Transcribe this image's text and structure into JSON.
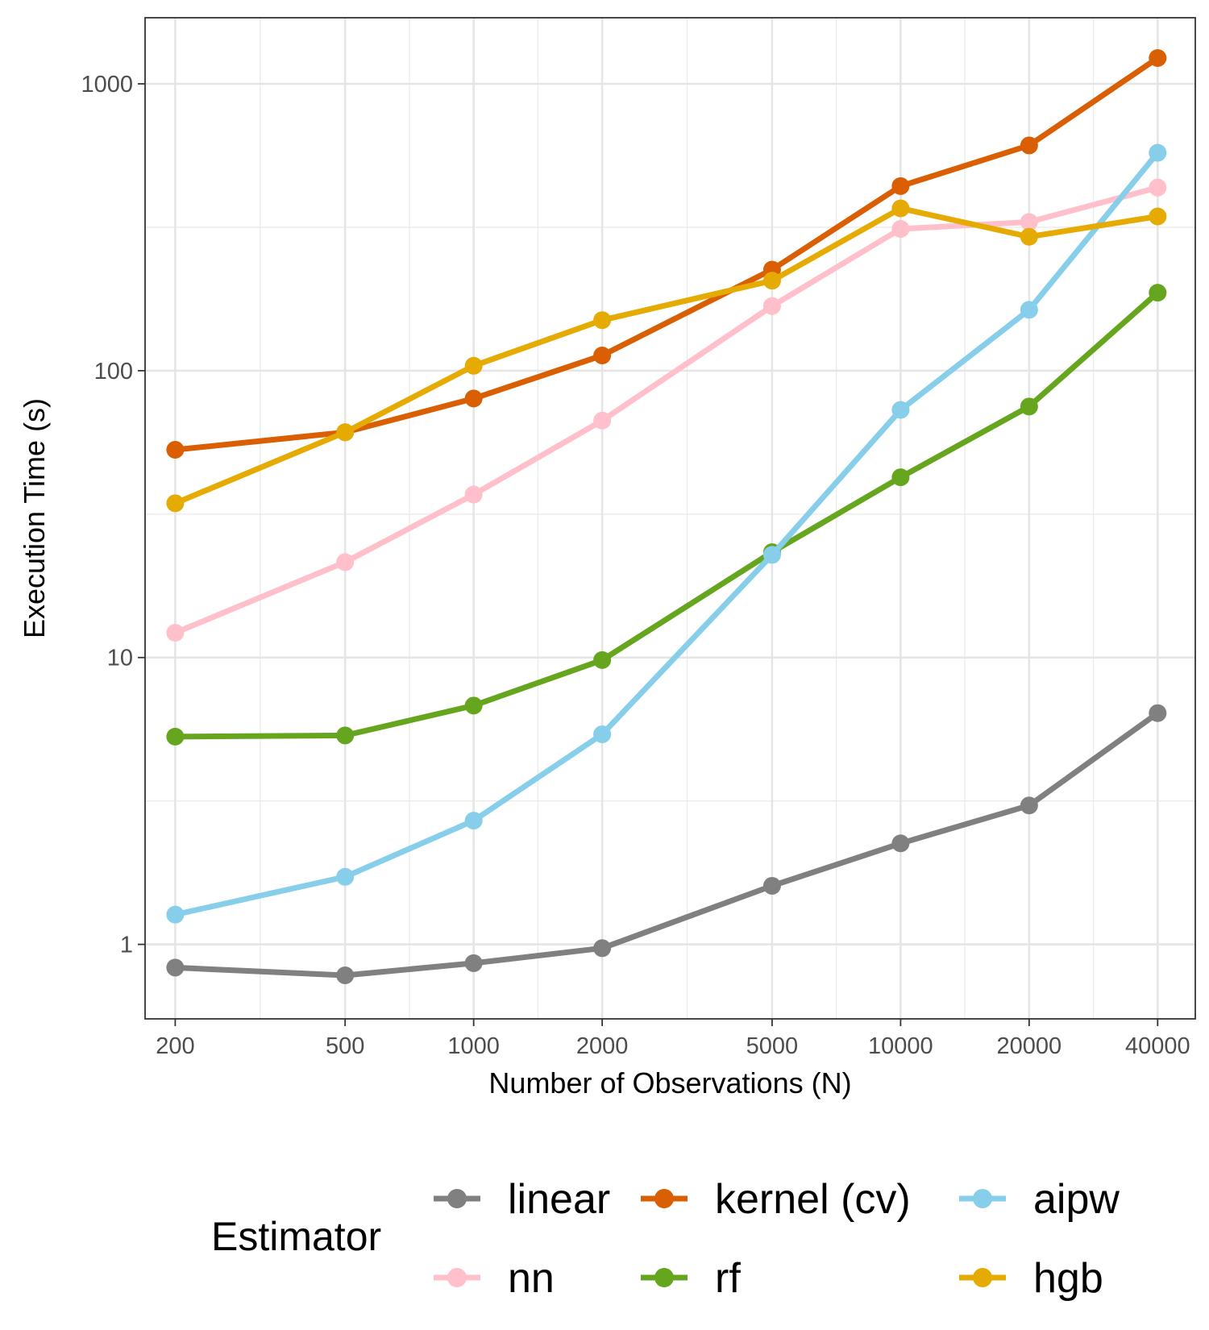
{
  "chart_data": {
    "type": "line",
    "title": "",
    "xlabel": "Number of Observations (N)",
    "ylabel": "Execution Time (s)",
    "x_scale": "log10",
    "y_scale": "log10",
    "x": [
      200,
      500,
      1000,
      2000,
      5000,
      10000,
      20000,
      40000
    ],
    "x_tick_labels": [
      "200",
      "500",
      "1000",
      "2000",
      "5000",
      "10000",
      "20000",
      "40000"
    ],
    "y_ticks": [
      1,
      10,
      100,
      1000
    ],
    "y_tick_labels": [
      "1",
      "10",
      "100",
      "1000"
    ],
    "xlim": [
      170,
      49000
    ],
    "ylim": [
      0.55,
      1700
    ],
    "grid": true,
    "legend_title": "Estimator",
    "legend_position": "bottom",
    "series": [
      {
        "name": "linear",
        "color": "#808080",
        "values": [
          0.83,
          0.78,
          0.86,
          0.97,
          1.6,
          2.25,
          3.05,
          6.4
        ]
      },
      {
        "name": "nn",
        "color": "#FFC0CB",
        "values": [
          12.2,
          21.5,
          37,
          67,
          168,
          312,
          330,
          435
        ]
      },
      {
        "name": "kernel (cv)",
        "color": "#D95F02",
        "values": [
          53,
          61,
          80,
          113,
          225,
          440,
          610,
          1230
        ]
      },
      {
        "name": "rf",
        "color": "#66A61E",
        "values": [
          5.3,
          5.35,
          6.8,
          9.8,
          23.3,
          42.5,
          75,
          187
        ]
      },
      {
        "name": "aipw",
        "color": "#87CEEB",
        "values": [
          1.27,
          1.72,
          2.7,
          5.4,
          22.8,
          73,
          163,
          575
        ]
      },
      {
        "name": "hgb",
        "color": "#E6AB02",
        "values": [
          34.5,
          61,
          104,
          150,
          206,
          368,
          293,
          345
        ]
      }
    ],
    "legend_layout": [
      [
        "linear",
        "kernel (cv)",
        "aipw"
      ],
      [
        "nn",
        "rf",
        "hgb"
      ]
    ]
  }
}
